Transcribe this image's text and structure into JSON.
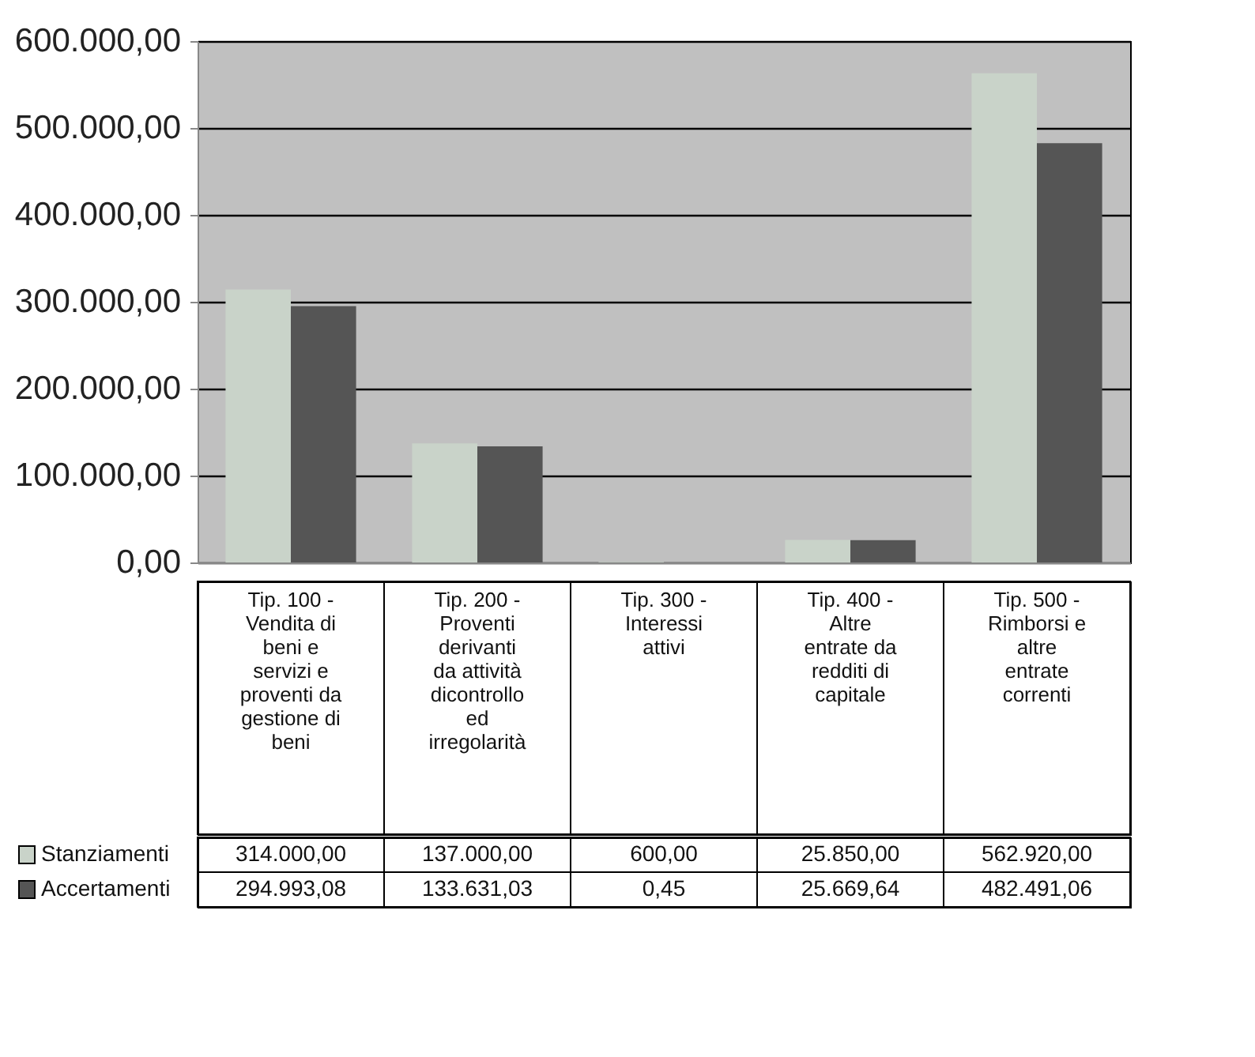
{
  "chart_data": {
    "type": "bar",
    "categories": [
      "Tip. 100 - Vendita di beni e servizi e proventi da gestione di beni",
      "Tip. 200 - Proventi derivanti da attività dicontrollo ed irregolarità",
      "Tip. 300 - Interessi attivi",
      "Tip. 400 - Altre entrate da redditi di capitale",
      "Tip. 500 - Rimborsi e altre entrate correnti"
    ],
    "series": [
      {
        "name": "Stanziamenti",
        "color": "#c9d3c9",
        "values": [
          314000,
          137000,
          600,
          25850,
          562920
        ],
        "value_labels": [
          "314.000,00",
          "137.000,00",
          "600,00",
          "25.850,00",
          "562.920,00"
        ]
      },
      {
        "name": "Accertamenti",
        "color": "#555555",
        "values": [
          294993.08,
          133631.03,
          0.45,
          25669.64,
          482491.06
        ],
        "value_labels": [
          "294.993,08",
          "133.631,03",
          "0,45",
          "25.669,64",
          "482.491,06"
        ]
      }
    ],
    "ylim": [
      0,
      600000
    ],
    "yticks": [
      {
        "value": 0,
        "label": "0,00"
      },
      {
        "value": 100000,
        "label": "100.000,00"
      },
      {
        "value": 200000,
        "label": "200.000,00"
      },
      {
        "value": 300000,
        "label": "300.000,00"
      },
      {
        "value": 400000,
        "label": "400.000,00"
      },
      {
        "value": 500000,
        "label": "500.000,00"
      },
      {
        "value": 600000,
        "label": "600.000,00"
      }
    ],
    "grid": "y",
    "legend": "bottom"
  }
}
